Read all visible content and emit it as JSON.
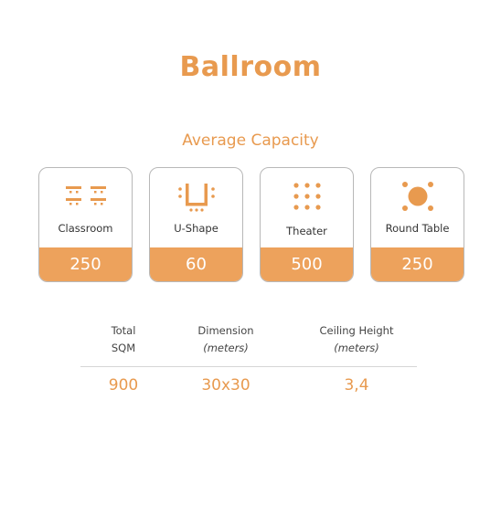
{
  "title": "Ballroom",
  "subtitle": "Average Capacity",
  "colors": {
    "accent": "#e89a4f",
    "value_bar": "#eda25c",
    "card_border": "#b8b8b8"
  },
  "capacities": [
    {
      "label": "Classroom",
      "value": "250",
      "icon": "classroom-icon"
    },
    {
      "label": "U-Shape",
      "value": "60",
      "icon": "u-shape-icon"
    },
    {
      "label": "Theater",
      "value": "500",
      "icon": "theater-icon"
    },
    {
      "label": "Round Table",
      "value": "250",
      "icon": "round-table-icon"
    }
  ],
  "stats": [
    {
      "heading": "Total",
      "heading_line2": "SQM",
      "value": "900"
    },
    {
      "heading": "Dimension",
      "heading_line2": "(meters)",
      "value": "30x30"
    },
    {
      "heading": "Ceiling Height",
      "heading_line2": "(meters)",
      "value": "3,4"
    }
  ]
}
